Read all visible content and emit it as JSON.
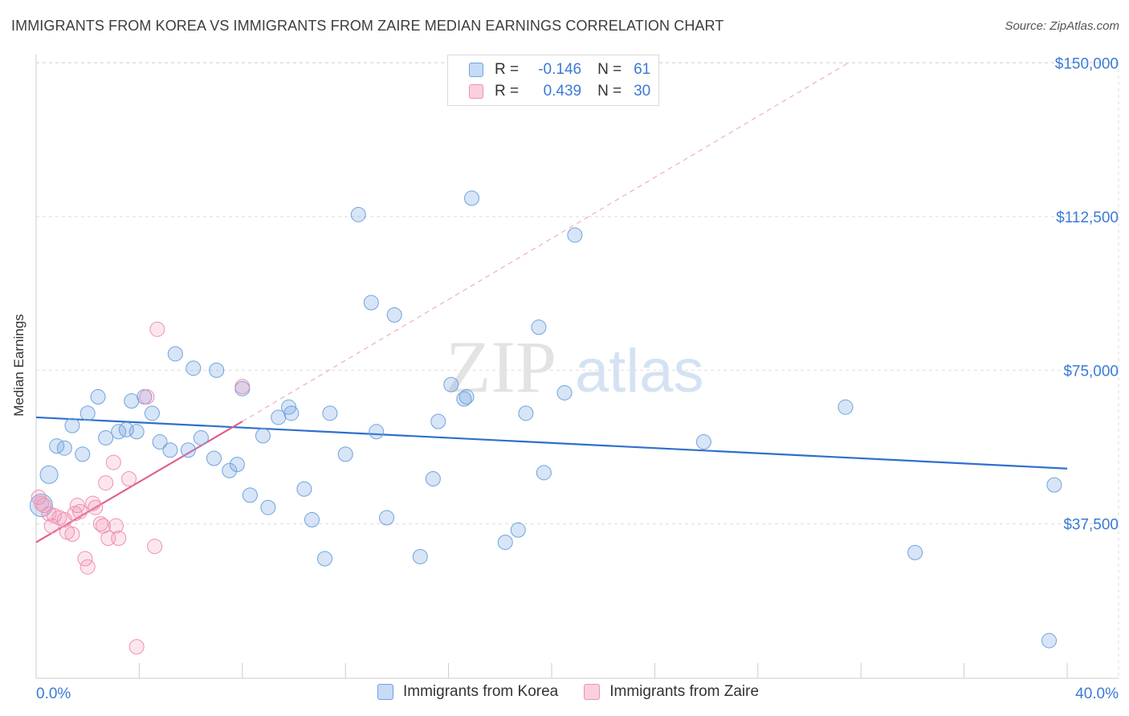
{
  "header": {
    "title": "IMMIGRANTS FROM KOREA VS IMMIGRANTS FROM ZAIRE MEDIAN EARNINGS CORRELATION CHART",
    "source": "Source: ZipAtlas.com"
  },
  "watermark": {
    "part1": "ZIP",
    "part2": "atlas"
  },
  "legend_top": [
    {
      "r_label": "R = ",
      "r_value": "-0.146",
      "n_label": "N = ",
      "n_value": "61",
      "color": "#6fa3e0"
    },
    {
      "r_label": "R = ",
      "r_value": "0.439",
      "n_label": "N = ",
      "n_value": "30",
      "color": "#f08fb0"
    }
  ],
  "chart_data": {
    "type": "scatter",
    "title": "IMMIGRANTS FROM KOREA VS IMMIGRANTS FROM ZAIRE MEDIAN EARNINGS CORRELATION CHART",
    "xlabel": "",
    "ylabel": "Median Earnings",
    "xlim": [
      0,
      40
    ],
    "ylim": [
      0,
      155000
    ],
    "x_tick_labels": [
      "0.0%",
      "40.0%"
    ],
    "y_ticks": [
      37500,
      75000,
      112500,
      150000
    ],
    "y_tick_labels": [
      "$37,500",
      "$75,000",
      "$112,500",
      "$150,000"
    ],
    "grid": true,
    "legend_position": "bottom",
    "series": [
      {
        "name": "Immigrants from Korea",
        "color": "#6fa3e0",
        "r": -0.146,
        "n": 61,
        "trend": {
          "x0": 0,
          "y0": 63500,
          "x1": 40,
          "y1": 51000
        },
        "points": [
          [
            0.2,
            42000
          ],
          [
            0.5,
            49500
          ],
          [
            0.8,
            56500
          ],
          [
            1.1,
            56000
          ],
          [
            1.4,
            61500
          ],
          [
            1.8,
            54500
          ],
          [
            2.0,
            64500
          ],
          [
            2.4,
            68500
          ],
          [
            2.7,
            58500
          ],
          [
            3.2,
            60000
          ],
          [
            3.5,
            60500
          ],
          [
            3.7,
            67500
          ],
          [
            3.9,
            60000
          ],
          [
            4.2,
            68500
          ],
          [
            4.5,
            64500
          ],
          [
            4.8,
            57500
          ],
          [
            5.2,
            55500
          ],
          [
            5.4,
            79000
          ],
          [
            5.9,
            55500
          ],
          [
            6.1,
            75500
          ],
          [
            6.4,
            58500
          ],
          [
            6.9,
            53500
          ],
          [
            7.0,
            75000
          ],
          [
            7.5,
            50500
          ],
          [
            7.8,
            52000
          ],
          [
            8.0,
            70500
          ],
          [
            8.3,
            44500
          ],
          [
            8.8,
            59000
          ],
          [
            9.0,
            41500
          ],
          [
            9.4,
            63500
          ],
          [
            9.8,
            66000
          ],
          [
            9.9,
            64500
          ],
          [
            10.4,
            46000
          ],
          [
            10.7,
            38500
          ],
          [
            11.2,
            29000
          ],
          [
            11.4,
            64500
          ],
          [
            12.0,
            54500
          ],
          [
            12.5,
            113000
          ],
          [
            13.0,
            91500
          ],
          [
            13.2,
            60000
          ],
          [
            13.6,
            39000
          ],
          [
            13.9,
            88500
          ],
          [
            14.9,
            29500
          ],
          [
            15.4,
            48500
          ],
          [
            15.6,
            62500
          ],
          [
            16.1,
            71500
          ],
          [
            16.6,
            68000
          ],
          [
            16.7,
            68500
          ],
          [
            16.9,
            117000
          ],
          [
            18.2,
            33000
          ],
          [
            18.7,
            36000
          ],
          [
            19.0,
            64500
          ],
          [
            19.5,
            85500
          ],
          [
            19.7,
            50000
          ],
          [
            20.5,
            69500
          ],
          [
            20.9,
            108000
          ],
          [
            25.9,
            57500
          ],
          [
            31.4,
            66000
          ],
          [
            34.1,
            30500
          ],
          [
            39.3,
            9000
          ],
          [
            39.5,
            47000
          ]
        ]
      },
      {
        "name": "Immigrants from Zaire",
        "color": "#f08fb0",
        "r": 0.439,
        "n": 30,
        "trend": {
          "x0": 0,
          "y0": 33000,
          "x1": 8,
          "y1": 62500
        },
        "trend_extension": {
          "x0": 8,
          "y0": 62500,
          "x1": 31.5,
          "y1": 150000
        },
        "points": [
          [
            0.1,
            44000
          ],
          [
            0.2,
            42500
          ],
          [
            0.3,
            42000
          ],
          [
            0.5,
            40000
          ],
          [
            0.6,
            37000
          ],
          [
            0.7,
            39500
          ],
          [
            0.9,
            39000
          ],
          [
            1.1,
            38500
          ],
          [
            1.2,
            35500
          ],
          [
            1.4,
            35000
          ],
          [
            1.5,
            40000
          ],
          [
            1.6,
            42000
          ],
          [
            1.7,
            40500
          ],
          [
            1.9,
            29000
          ],
          [
            2.0,
            27000
          ],
          [
            2.2,
            42500
          ],
          [
            2.3,
            41500
          ],
          [
            2.5,
            37500
          ],
          [
            2.6,
            37000
          ],
          [
            2.7,
            47500
          ],
          [
            2.8,
            34000
          ],
          [
            3.0,
            52500
          ],
          [
            3.1,
            37000
          ],
          [
            3.2,
            34000
          ],
          [
            3.6,
            48500
          ],
          [
            3.9,
            7500
          ],
          [
            4.3,
            68500
          ],
          [
            4.6,
            32000
          ],
          [
            4.7,
            85000
          ],
          [
            8.0,
            71000
          ]
        ]
      }
    ]
  }
}
